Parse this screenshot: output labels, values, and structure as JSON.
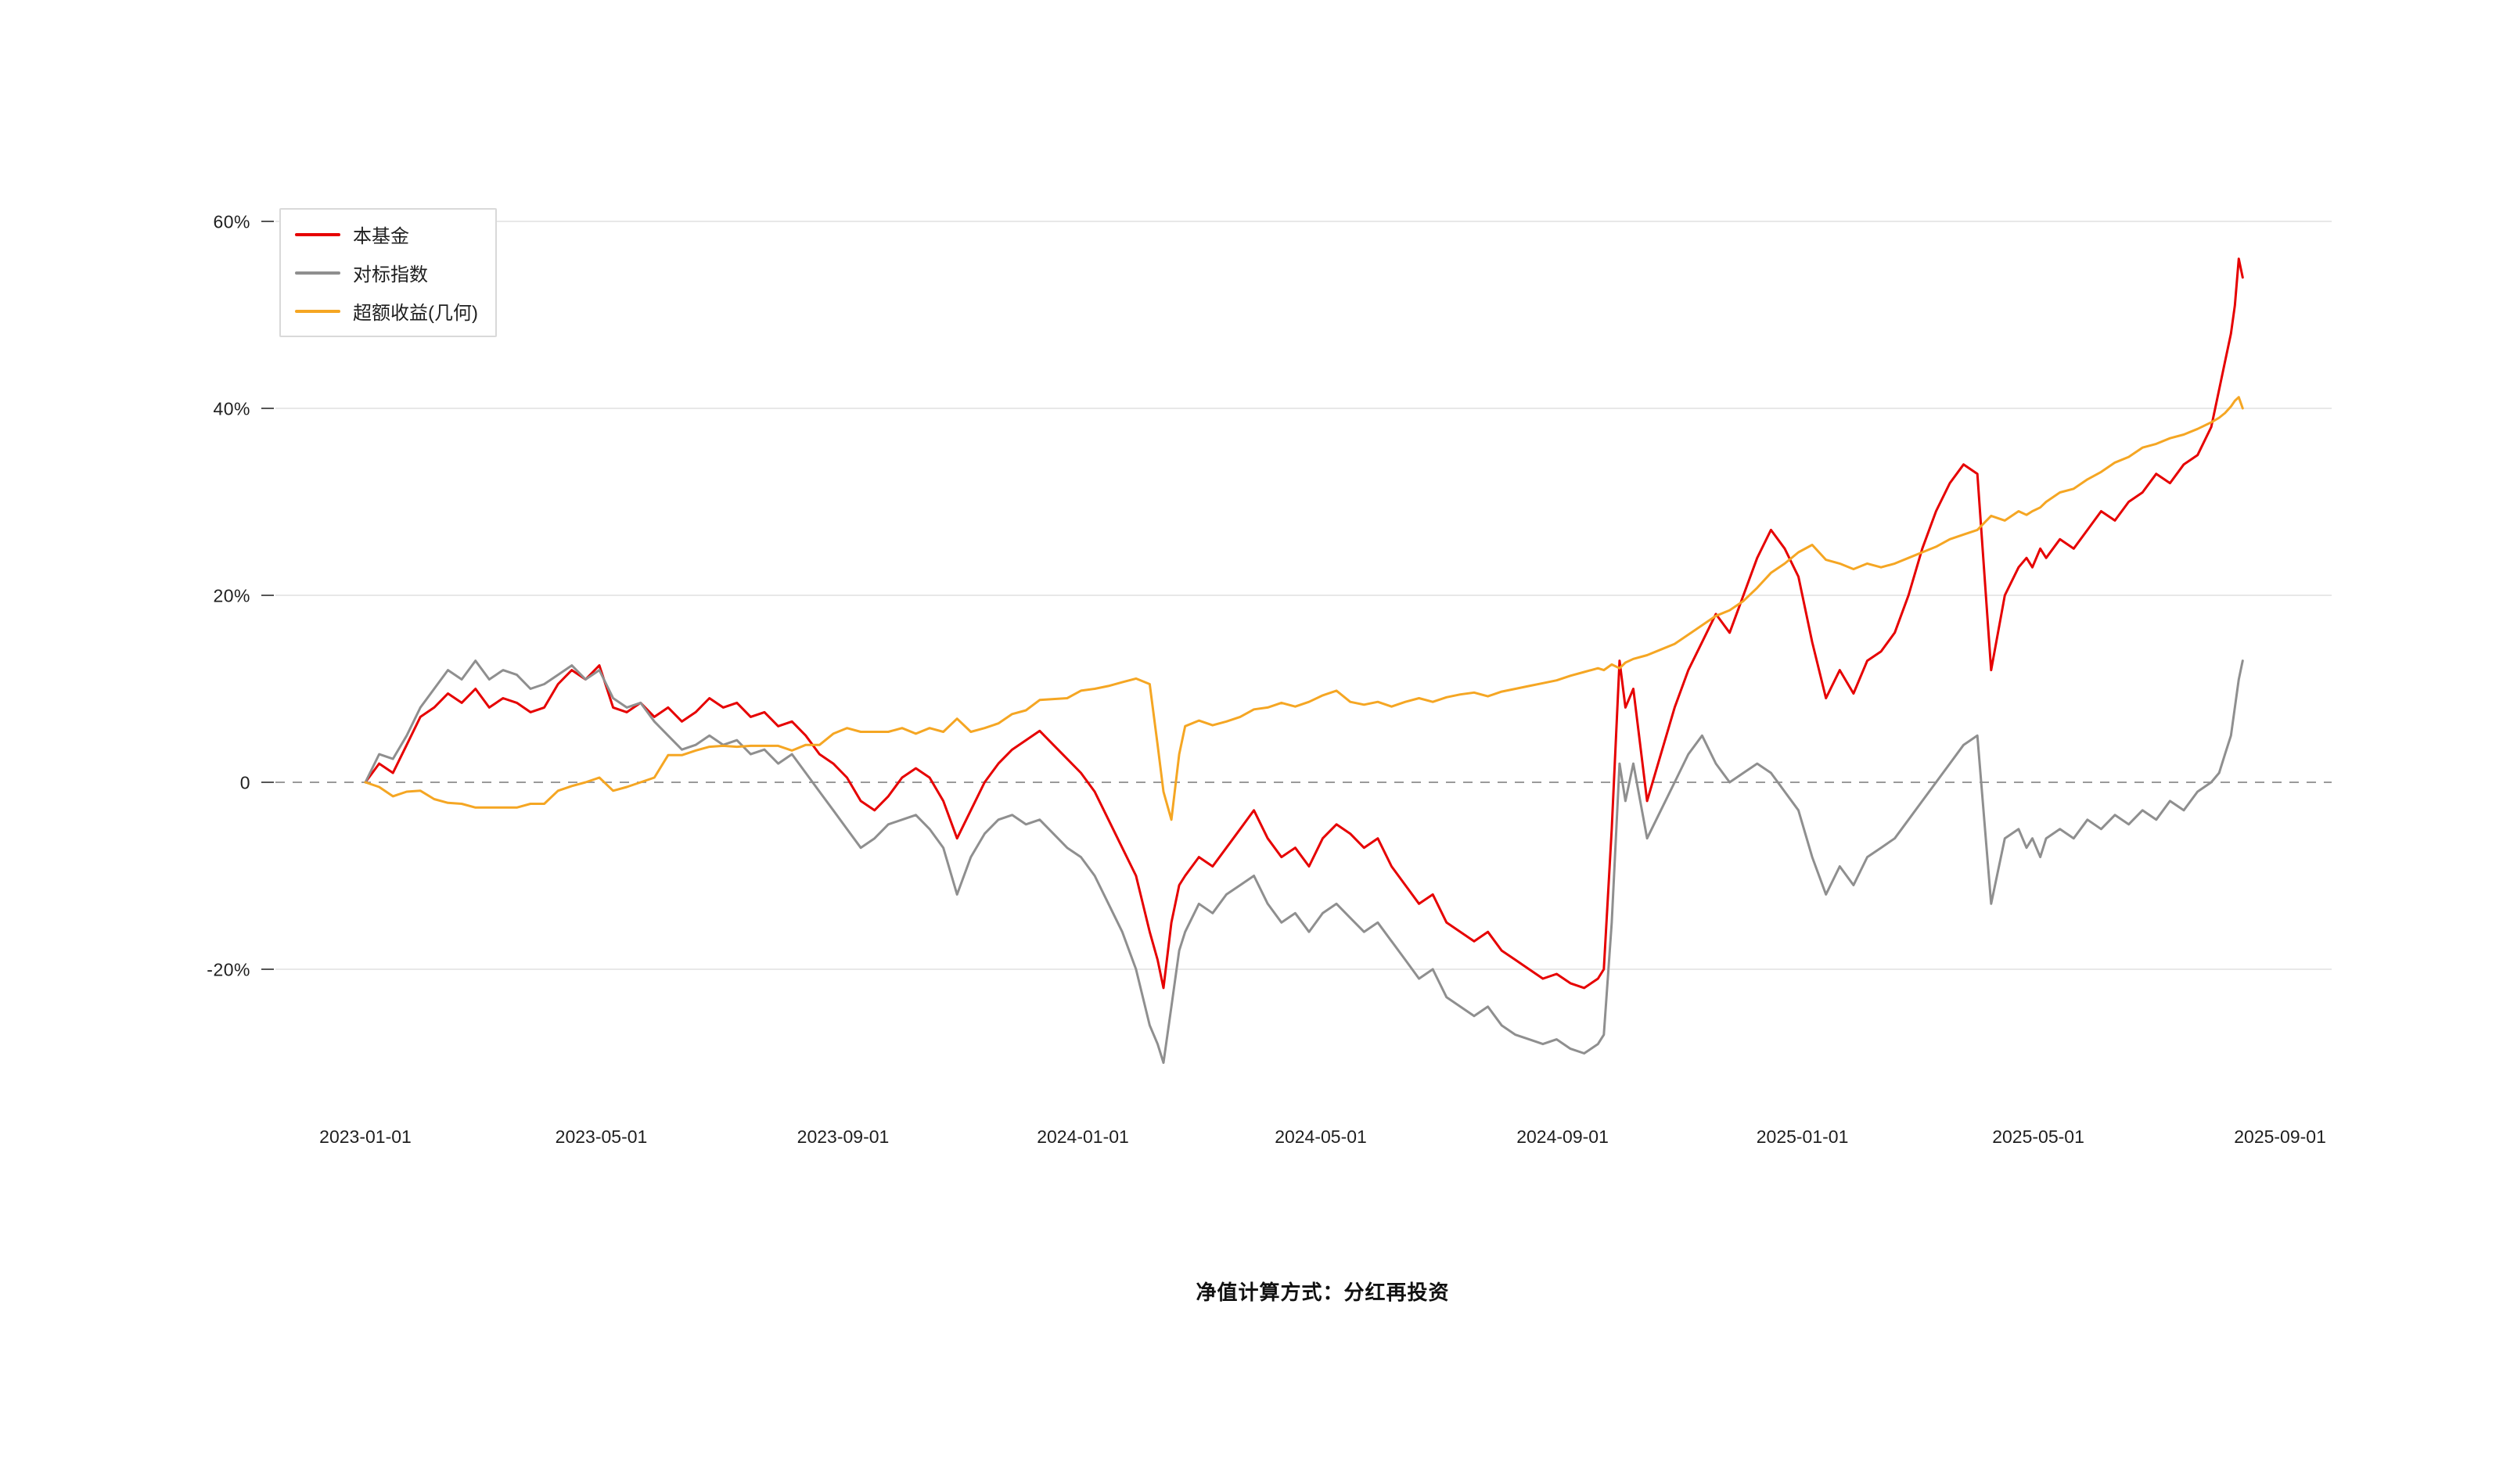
{
  "footer": {
    "note": "净值计算方式：分红再投资"
  },
  "chart_data": {
    "type": "line",
    "title": "",
    "xlabel": "",
    "ylabel": "",
    "grid": true,
    "zero_line": "dashed",
    "legend_position": "top-left",
    "x_unit": "days since 2023-01-01",
    "ylim": [
      -34,
      62
    ],
    "yticks": [
      60,
      40,
      20,
      0,
      -20
    ],
    "yticklabels": [
      "60%",
      "40%",
      "20%",
      "0",
      "-20%"
    ],
    "xticks": [
      0,
      120,
      243,
      365,
      486,
      609,
      731,
      851,
      974
    ],
    "xticklabels": [
      "2023-01-01",
      "2023-05-01",
      "2023-09-01",
      "2024-01-01",
      "2024-05-01",
      "2024-09-01",
      "2025-01-01",
      "2025-05-01",
      "2025-09-01"
    ],
    "x": [
      0,
      7,
      14,
      21,
      28,
      35,
      42,
      49,
      56,
      63,
      70,
      77,
      84,
      91,
      98,
      105,
      112,
      119,
      126,
      133,
      140,
      147,
      154,
      161,
      168,
      175,
      182,
      189,
      196,
      203,
      210,
      217,
      224,
      231,
      238,
      245,
      252,
      259,
      266,
      273,
      280,
      287,
      294,
      301,
      308,
      315,
      322,
      329,
      336,
      343,
      350,
      357,
      364,
      371,
      378,
      385,
      392,
      399,
      403,
      406,
      410,
      414,
      417,
      424,
      431,
      438,
      445,
      452,
      459,
      466,
      473,
      480,
      487,
      494,
      501,
      508,
      515,
      522,
      529,
      536,
      543,
      550,
      557,
      564,
      571,
      578,
      585,
      592,
      599,
      606,
      613,
      620,
      627,
      630,
      634,
      638,
      641,
      645,
      652,
      659,
      666,
      673,
      680,
      687,
      694,
      701,
      708,
      715,
      722,
      729,
      736,
      743,
      750,
      757,
      764,
      771,
      778,
      785,
      792,
      799,
      806,
      813,
      820,
      827,
      834,
      841,
      845,
      848,
      852,
      855,
      862,
      869,
      876,
      883,
      890,
      897,
      904,
      911,
      918,
      925,
      932,
      939,
      943,
      946,
      949,
      951,
      953,
      955
    ],
    "series": [
      {
        "key": "fund",
        "name": "本基金",
        "color": "#e60000",
        "values": [
          0,
          2,
          1,
          4,
          7,
          8,
          9.5,
          8.5,
          10,
          8,
          9,
          8.5,
          7.5,
          8,
          10.5,
          12,
          11,
          12.5,
          8,
          7.5,
          8.5,
          7,
          8,
          6.5,
          7.5,
          9,
          8,
          8.5,
          7,
          7.5,
          6,
          6.5,
          5,
          3,
          2,
          0.5,
          -2,
          -3,
          -1.5,
          0.5,
          1.5,
          0.5,
          -2,
          -6,
          -3,
          0,
          2,
          3.5,
          4.5,
          5.5,
          4,
          2.5,
          1,
          -1,
          -4,
          -7,
          -10,
          -16,
          -19,
          -22,
          -15,
          -11,
          -10,
          -8,
          -9,
          -7,
          -5,
          -3,
          -6,
          -8,
          -7,
          -9,
          -6,
          -4.5,
          -5.5,
          -7,
          -6,
          -9,
          -11,
          -13,
          -12,
          -15,
          -16,
          -17,
          -16,
          -18,
          -19,
          -20,
          -21,
          -20.5,
          -21.5,
          -22,
          -21,
          -20,
          -5,
          13,
          8,
          10,
          -2,
          3,
          8,
          12,
          15,
          18,
          16,
          20,
          24,
          27,
          25,
          22,
          15,
          9,
          12,
          9.5,
          13,
          14,
          16,
          20,
          25,
          29,
          32,
          34,
          33,
          12,
          20,
          23,
          24,
          23,
          25,
          24,
          26,
          25,
          27,
          29,
          28,
          30,
          31,
          33,
          32,
          34,
          35,
          38,
          42,
          45,
          48,
          51,
          56,
          54
        ]
      },
      {
        "key": "benchmark",
        "name": "对标指数",
        "color": "#8f8f8f",
        "values": [
          0,
          3,
          2.5,
          5,
          8,
          10,
          12,
          11,
          13,
          11,
          12,
          11.5,
          10,
          10.5,
          11.5,
          12.5,
          11,
          12,
          9,
          8,
          8.5,
          6.5,
          5,
          3.5,
          4,
          5,
          4,
          4.5,
          3,
          3.5,
          2,
          3,
          1,
          -1,
          -3,
          -5,
          -7,
          -6,
          -4.5,
          -4,
          -3.5,
          -5,
          -7,
          -12,
          -8,
          -5.5,
          -4,
          -3.5,
          -4.5,
          -4,
          -5.5,
          -7,
          -8,
          -10,
          -13,
          -16,
          -20,
          -26,
          -28,
          -30,
          -24,
          -18,
          -16,
          -13,
          -14,
          -12,
          -11,
          -10,
          -13,
          -15,
          -14,
          -16,
          -14,
          -13,
          -14.5,
          -16,
          -15,
          -17,
          -19,
          -21,
          -20,
          -23,
          -24,
          -25,
          -24,
          -26,
          -27,
          -27.5,
          -28,
          -27.5,
          -28.5,
          -29,
          -28,
          -27,
          -15,
          2,
          -2,
          2,
          -6,
          -3,
          0,
          3,
          5,
          2,
          0,
          1,
          2,
          1,
          -1,
          -3,
          -8,
          -12,
          -9,
          -11,
          -8,
          -7,
          -6,
          -4,
          -2,
          0,
          2,
          4,
          5,
          -13,
          -6,
          -5,
          -7,
          -6,
          -8,
          -6,
          -5,
          -6,
          -4,
          -5,
          -3.5,
          -4.5,
          -3,
          -4,
          -2,
          -3,
          -1,
          0,
          1,
          3,
          5,
          8,
          11,
          13
        ]
      },
      {
        "key": "excess_return_geometric",
        "name": "超额收益(几何)",
        "color": "#f5a623",
        "values": [
          0,
          -0.5,
          -1.5,
          -1,
          -0.9,
          -1.8,
          -2.2,
          -2.3,
          -2.7,
          -2.7,
          -2.7,
          -2.7,
          -2.3,
          -2.3,
          -0.9,
          -0.4,
          0,
          0.5,
          -0.9,
          -0.5,
          0,
          0.5,
          2.9,
          2.9,
          3.4,
          3.8,
          3.9,
          3.8,
          3.9,
          3.9,
          3.9,
          3.4,
          4,
          4,
          5.2,
          5.8,
          5.4,
          5.4,
          5.4,
          5.8,
          5.2,
          5.8,
          5.4,
          6.8,
          5.4,
          5.8,
          6.3,
          7.3,
          7.7,
          8.8,
          8.9,
          9,
          9.8,
          10,
          10.3,
          10.7,
          11.1,
          10.5,
          4,
          -1,
          -4,
          3,
          6,
          6.6,
          6.1,
          6.5,
          7,
          7.8,
          8,
          8.5,
          8.1,
          8.6,
          9.3,
          9.8,
          8.6,
          8.3,
          8.6,
          8.1,
          8.6,
          9,
          8.6,
          9.1,
          9.4,
          9.6,
          9.2,
          9.7,
          10,
          10.3,
          10.6,
          10.9,
          11.4,
          11.8,
          12.2,
          12,
          12.6,
          12.2,
          12.8,
          13.2,
          13.6,
          14.2,
          14.8,
          15.8,
          16.8,
          17.8,
          18.4,
          19.4,
          20.8,
          22.4,
          23.4,
          24.6,
          25.4,
          23.8,
          23.4,
          22.8,
          23.4,
          23,
          23.4,
          24,
          24.6,
          25.2,
          26,
          26.5,
          27,
          28.5,
          28,
          29,
          28.6,
          29,
          29.4,
          30,
          31,
          31.4,
          32.4,
          33.2,
          34.2,
          34.8,
          35.8,
          36.2,
          36.8,
          37.2,
          37.8,
          38.5,
          39,
          39.5,
          40.2,
          40.8,
          41.2,
          40
        ]
      }
    ]
  }
}
